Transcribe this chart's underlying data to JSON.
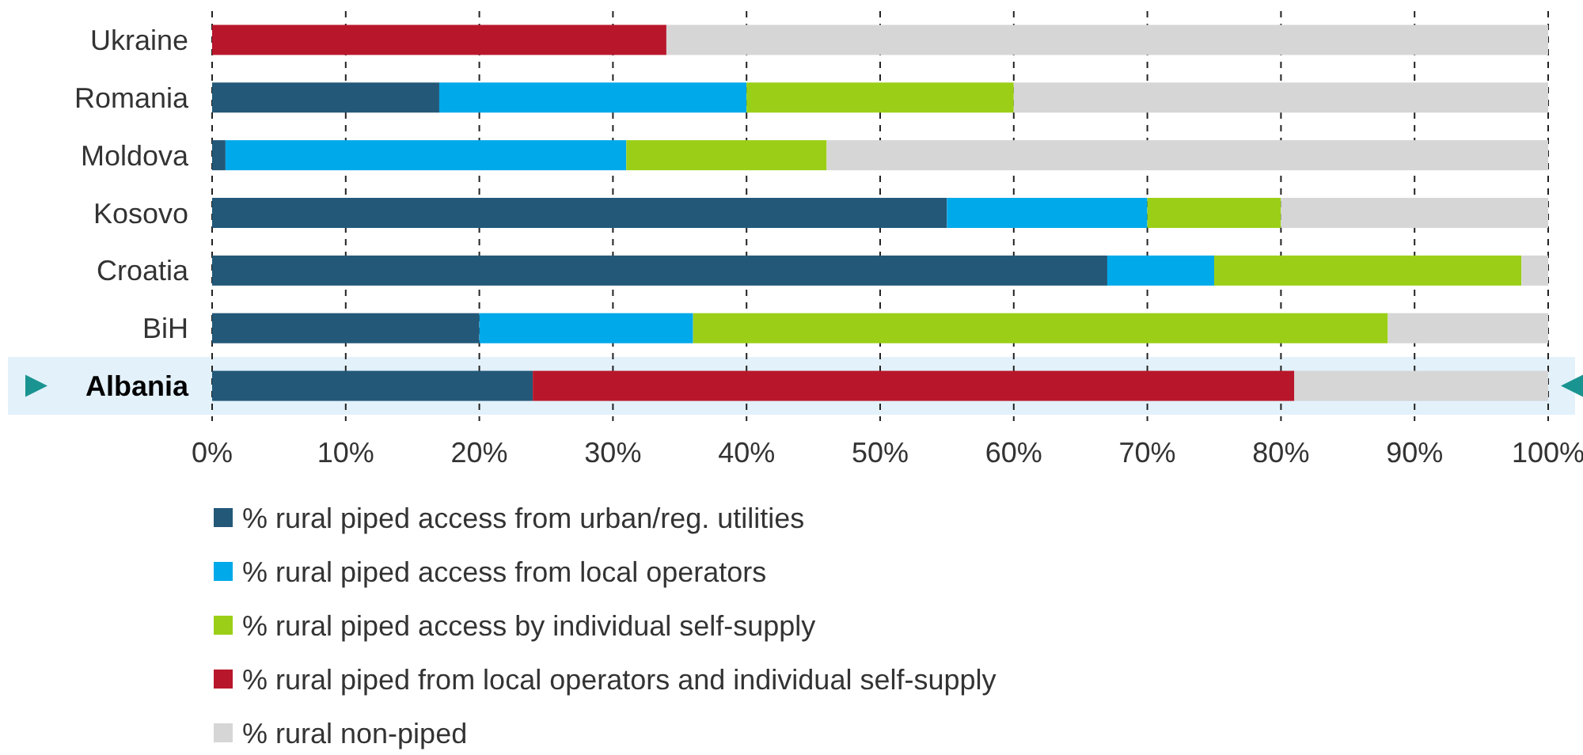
{
  "chart_data": {
    "type": "bar",
    "orientation": "horizontal",
    "stacked": true,
    "categories": [
      "Ukraine",
      "Romania",
      "Moldova",
      "Kosovo",
      "Croatia",
      "BiH",
      "Albania"
    ],
    "series": [
      {
        "name": "% rural piped access from urban/reg. utilities",
        "color": "#235878",
        "values": [
          null,
          17,
          1,
          55,
          67,
          20,
          24
        ]
      },
      {
        "name": "% rural piped access from local operators",
        "color": "#00a9e9",
        "values": [
          null,
          23,
          30,
          15,
          8,
          16,
          null
        ]
      },
      {
        "name": "% rural piped access by individual self-supply",
        "color": "#9bcf17",
        "values": [
          null,
          20,
          15,
          10,
          23,
          52,
          null
        ]
      },
      {
        "name": "% rural piped from local operators and individual self-supply",
        "color": "#b8172b",
        "values": [
          34,
          null,
          null,
          null,
          null,
          null,
          57
        ]
      },
      {
        "name": "% rural non-piped",
        "color": "#d6d6d6",
        "values": [
          66,
          40,
          54,
          20,
          2,
          12,
          19
        ]
      }
    ],
    "xlim": [
      0,
      100
    ],
    "xticks": [
      {
        "value": 0,
        "label": "0%"
      },
      {
        "value": 10,
        "label": "10%"
      },
      {
        "value": 20,
        "label": "20%"
      },
      {
        "value": 30,
        "label": "30%"
      },
      {
        "value": 40,
        "label": "40%"
      },
      {
        "value": 50,
        "label": "50%"
      },
      {
        "value": 60,
        "label": "60%"
      },
      {
        "value": 70,
        "label": "70%"
      },
      {
        "value": 80,
        "label": "80%"
      },
      {
        "value": 90,
        "label": "90%"
      },
      {
        "value": 100,
        "label": "100%"
      }
    ],
    "bands": [
      {
        "axis": "y",
        "from": "Albania",
        "to": "Albania",
        "color": "#e3f1fb"
      }
    ],
    "grid": "x",
    "legend": "bottom"
  }
}
